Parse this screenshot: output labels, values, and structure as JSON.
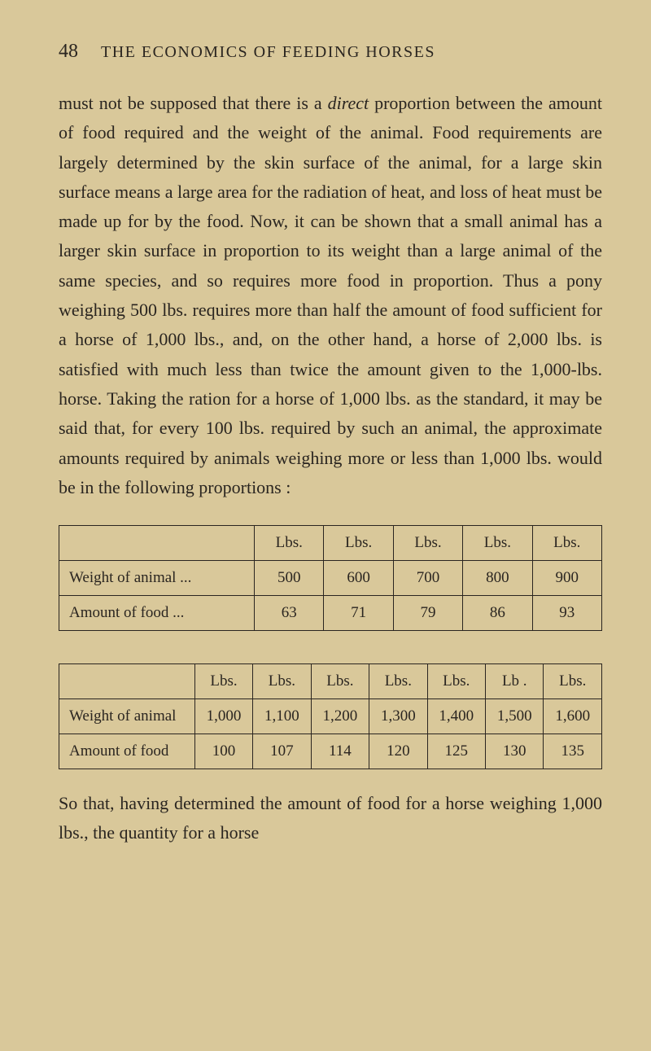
{
  "header": {
    "pageNumber": "48",
    "title": "THE ECONOMICS OF FEEDING HORSES"
  },
  "bodyText": {
    "p1_pre": "must not be supposed that there is a ",
    "p1_italic": "direct",
    "p1_post": " proportion between the amount of food required and the weight of the animal. Food requirements are largely determined by the skin surface of the animal, for a large skin surface means a large area for the radiation of heat, and loss of heat must be made up for by the food. Now, it can be shown that a small animal has a larger skin surface in proportion to its weight than a large animal of the same species, and so requires more food in proportion. Thus a pony weighing 500 lbs. requires more than half the amount of food sufficient for a horse of 1,000 lbs., and, on the other hand, a horse of 2,000 lbs. is satisfied with much less than twice the amount given to the 1,000-lbs. horse. Taking the ration for a horse of 1,000 lbs. as the standard, it may be said that, for every 100 lbs. required by such an animal, the approximate amounts required by animals weighing more or less than 1,000 lbs. would be in the following proportions :"
  },
  "table1": {
    "headers": [
      "",
      "Lbs.",
      "Lbs.",
      "Lbs.",
      "Lbs.",
      "Lbs."
    ],
    "rows": [
      [
        "Weight of animal   ...",
        "500",
        "600",
        "700",
        "800",
        "900"
      ],
      [
        "Amount of food      ...",
        "63",
        "71",
        "79",
        "86",
        "93"
      ]
    ]
  },
  "table2": {
    "headers": [
      "",
      "Lbs.",
      "Lbs.",
      "Lbs.",
      "Lbs.",
      "Lbs.",
      "Lb .",
      "Lbs."
    ],
    "rows": [
      [
        "Weight of animal",
        "1,000",
        "1,100",
        "1,200",
        "1,300",
        "1,400",
        "1,500",
        "1,600"
      ],
      [
        "Amount of food",
        "100",
        "107",
        "114",
        "120",
        "125",
        "130",
        "135"
      ]
    ]
  },
  "footerText": "So that, having determined the amount of food for a horse weighing 1,000 lbs., the quantity for a horse"
}
